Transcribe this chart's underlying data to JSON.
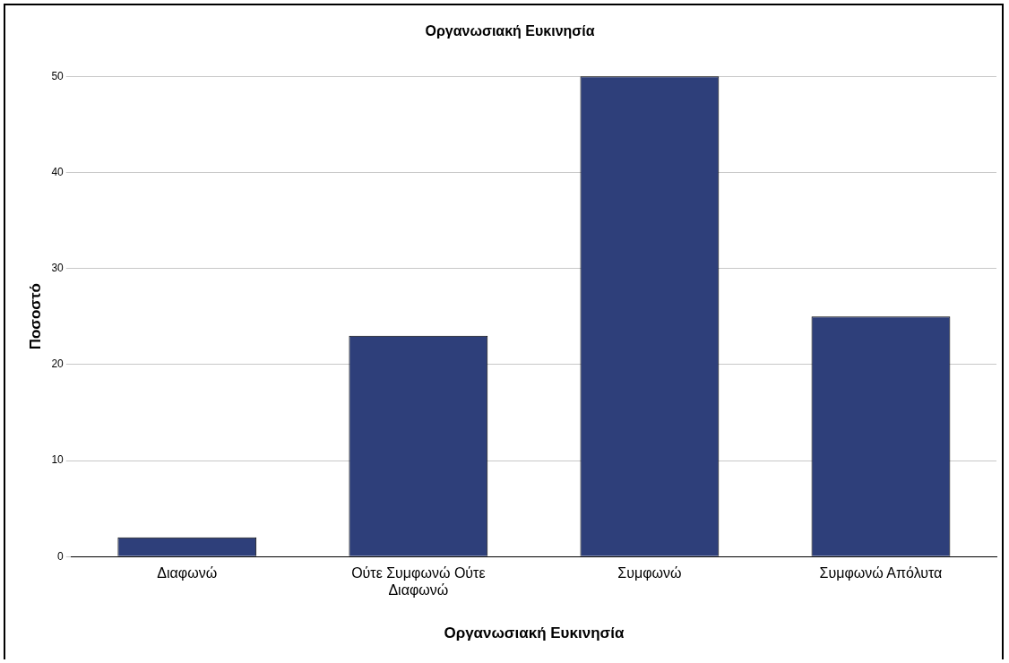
{
  "chart_data": {
    "type": "bar",
    "title": "Οργανωσιακή Ευκινησία",
    "xlabel": "Οργανωσιακή Ευκινησία",
    "ylabel": "Ποσοστό",
    "categories": [
      "Διαφωνώ",
      "Ούτε Συμφωνώ Ούτε Διαφωνώ",
      "Συμφωνώ",
      "Συμφωνώ Απόλυτα"
    ],
    "values": [
      2,
      23,
      50,
      25
    ],
    "color": "#2e3f7a",
    "ylim": [
      0,
      50
    ],
    "yticks": [
      0,
      10,
      20,
      30,
      40,
      50
    ],
    "grid": "y",
    "legend": false
  }
}
